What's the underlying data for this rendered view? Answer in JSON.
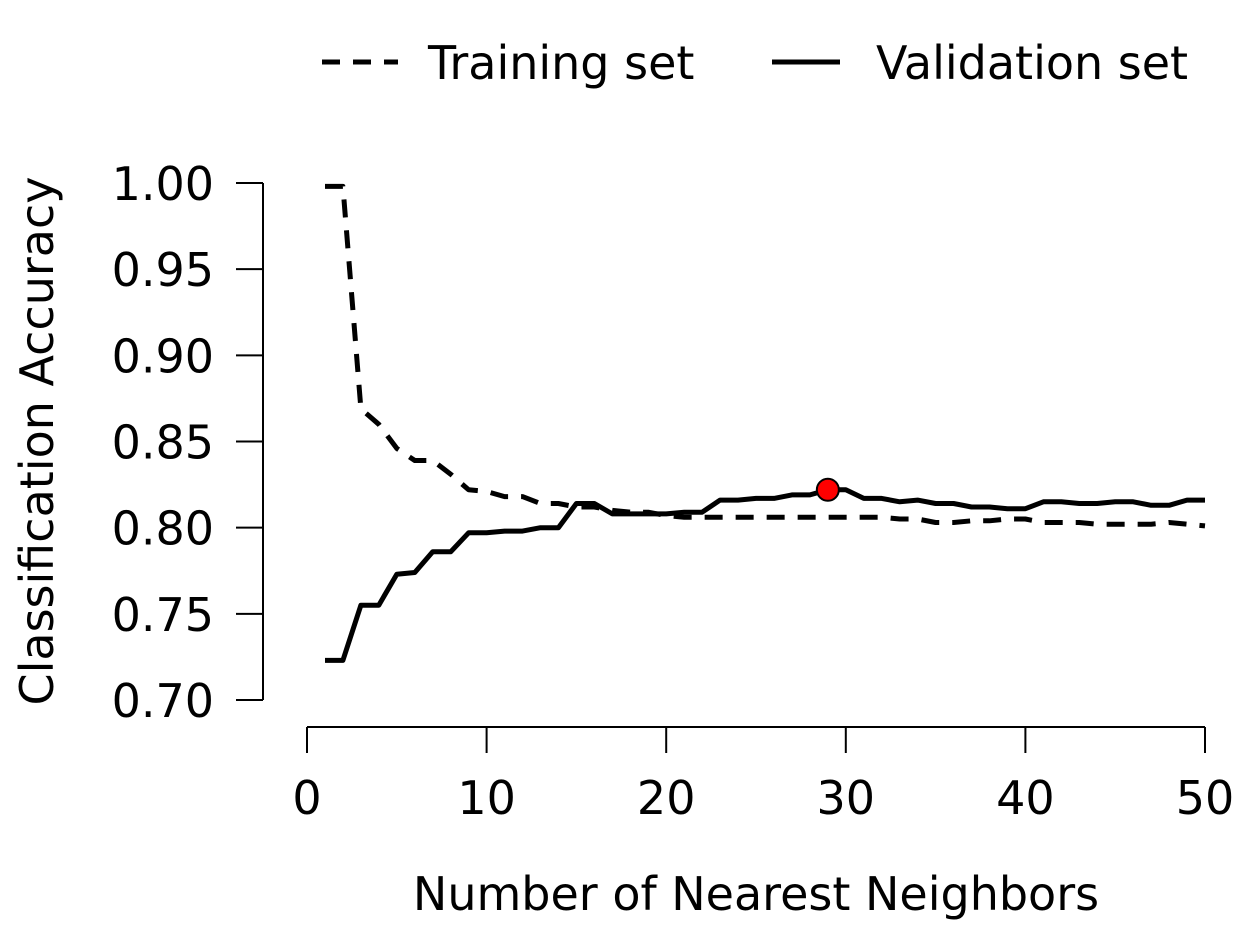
{
  "chart_data": {
    "type": "line",
    "xlabel": "Number of Nearest Neighbors",
    "ylabel": "Classification Accuracy",
    "xlim": [
      0,
      50
    ],
    "ylim": [
      0.7,
      1.0
    ],
    "xticks": [
      "0",
      "10",
      "20",
      "30",
      "40",
      "50"
    ],
    "yticks": [
      "0.70",
      "0.75",
      "0.80",
      "0.85",
      "0.90",
      "0.95",
      "1.00"
    ],
    "legend_position": "top",
    "grid": false,
    "series": [
      {
        "name": "Training set",
        "style": "dashed",
        "color": "#000000",
        "x": [
          1,
          2,
          3,
          4,
          5,
          6,
          7,
          8,
          9,
          10,
          11,
          12,
          13,
          14,
          15,
          16,
          17,
          18,
          19,
          20,
          21,
          22,
          23,
          24,
          25,
          26,
          27,
          28,
          29,
          30,
          31,
          32,
          33,
          34,
          35,
          36,
          37,
          38,
          39,
          40,
          41,
          42,
          43,
          44,
          45,
          46,
          47,
          48,
          49,
          50
        ],
        "values": [
          0.998,
          0.998,
          0.869,
          0.86,
          0.846,
          0.839,
          0.839,
          0.831,
          0.822,
          0.821,
          0.818,
          0.818,
          0.814,
          0.814,
          0.812,
          0.812,
          0.81,
          0.809,
          0.809,
          0.807,
          0.806,
          0.806,
          0.806,
          0.806,
          0.806,
          0.806,
          0.806,
          0.806,
          0.806,
          0.806,
          0.806,
          0.806,
          0.805,
          0.805,
          0.803,
          0.803,
          0.804,
          0.804,
          0.805,
          0.805,
          0.803,
          0.803,
          0.803,
          0.802,
          0.802,
          0.802,
          0.802,
          0.803,
          0.802,
          0.801
        ]
      },
      {
        "name": "Validation set",
        "style": "solid",
        "color": "#000000",
        "x": [
          1,
          2,
          3,
          4,
          5,
          6,
          7,
          8,
          9,
          10,
          11,
          12,
          13,
          14,
          15,
          16,
          17,
          18,
          19,
          20,
          21,
          22,
          23,
          24,
          25,
          26,
          27,
          28,
          29,
          30,
          31,
          32,
          33,
          34,
          35,
          36,
          37,
          38,
          39,
          40,
          41,
          42,
          43,
          44,
          45,
          46,
          47,
          48,
          49,
          50
        ],
        "values": [
          0.723,
          0.723,
          0.755,
          0.755,
          0.773,
          0.774,
          0.786,
          0.786,
          0.797,
          0.797,
          0.798,
          0.798,
          0.8,
          0.8,
          0.814,
          0.814,
          0.808,
          0.808,
          0.808,
          0.808,
          0.809,
          0.809,
          0.816,
          0.816,
          0.817,
          0.817,
          0.819,
          0.819,
          0.822,
          0.822,
          0.817,
          0.817,
          0.815,
          0.816,
          0.814,
          0.814,
          0.812,
          0.812,
          0.811,
          0.811,
          0.815,
          0.815,
          0.814,
          0.814,
          0.815,
          0.815,
          0.813,
          0.813,
          0.816,
          0.816
        ]
      }
    ],
    "highlight_point": {
      "x": 29,
      "y": 0.822,
      "color": "#ff0000"
    }
  }
}
